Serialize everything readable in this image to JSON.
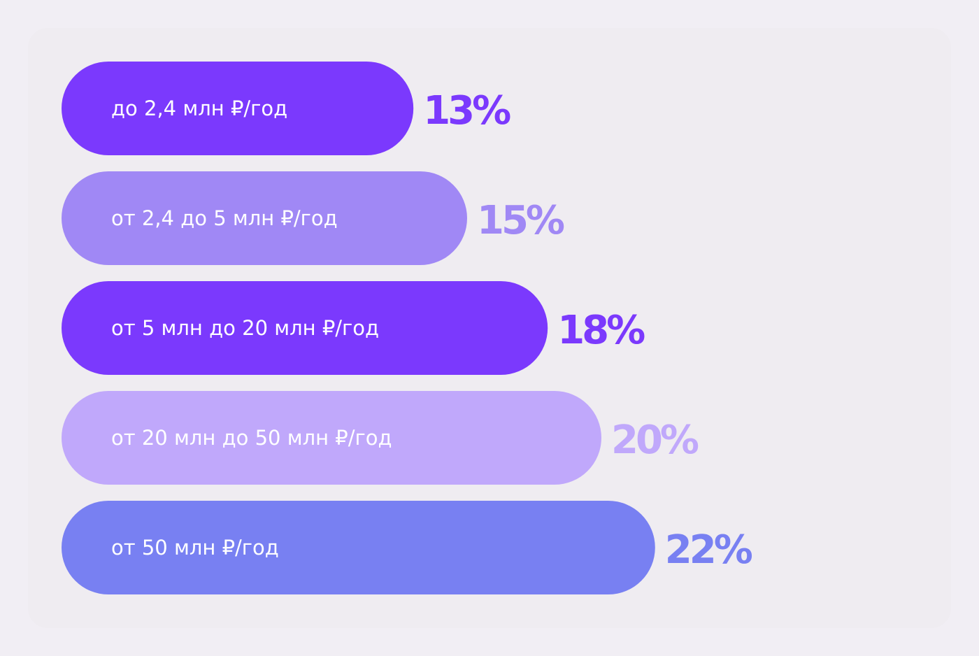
{
  "chart_data": {
    "type": "bar",
    "orientation": "horizontal",
    "categories": [
      "до 2,4 млн ₽/год",
      "от 2,4 до 5 млн ₽/год",
      "от 5 млн до 20 млн ₽/год",
      "от 20 млн до 50 млн ₽/год",
      "от 50 млн ₽/год"
    ],
    "values": [
      13,
      15,
      18,
      20,
      22
    ],
    "value_labels": [
      "13%",
      "15%",
      "18%",
      "20%",
      "22%"
    ],
    "colors": [
      "#7b39fd",
      "#a088f5",
      "#7b39fd",
      "#c0a8fb",
      "#7880f2"
    ],
    "title": "",
    "xlabel": "",
    "ylabel": "",
    "grid": false
  }
}
